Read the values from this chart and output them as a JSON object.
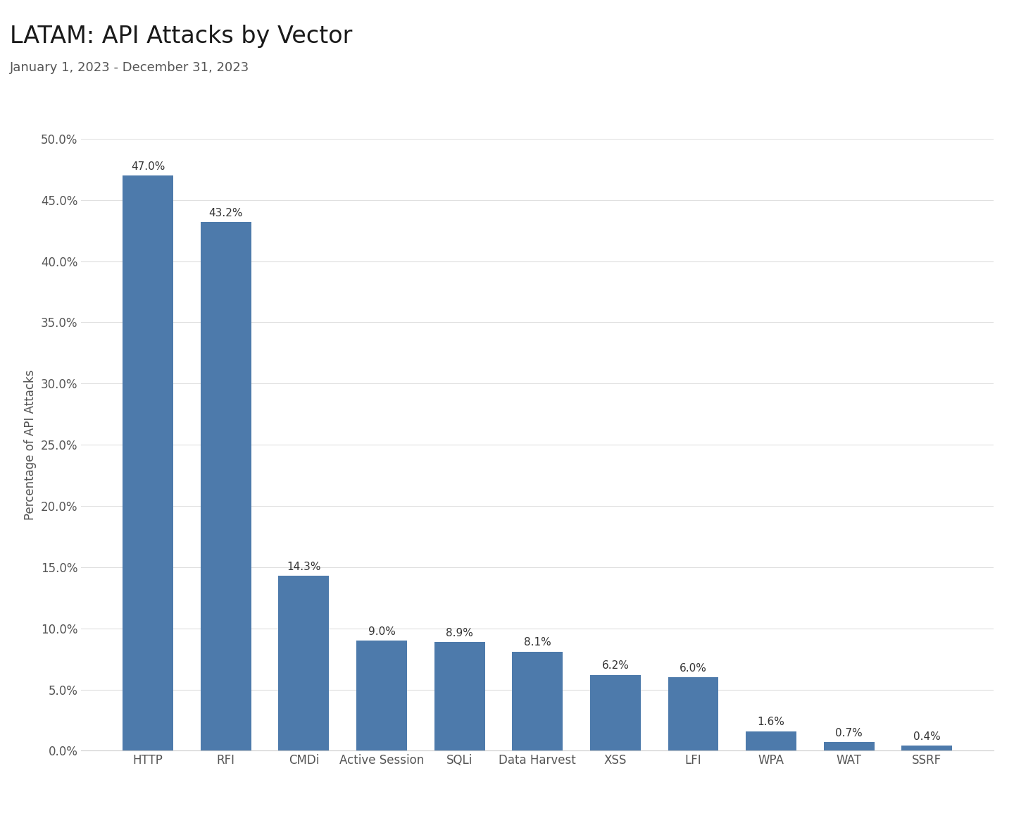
{
  "title": "LATAM: API Attacks by Vector",
  "subtitle": "January 1, 2023 - December 31, 2023",
  "categories": [
    "HTTP",
    "RFI",
    "CMDi",
    "Active Session",
    "SQLi",
    "Data Harvest",
    "XSS",
    "LFI",
    "WPA",
    "WAT",
    "SSRF"
  ],
  "values": [
    47.0,
    43.2,
    14.3,
    9.0,
    8.9,
    8.1,
    6.2,
    6.0,
    1.6,
    0.7,
    0.4
  ],
  "bar_color": "#4d7aab",
  "ylabel": "Percentage of API Attacks",
  "ylim": [
    0,
    50
  ],
  "yticks": [
    0,
    5,
    10,
    15,
    20,
    25,
    30,
    35,
    40,
    45,
    50
  ],
  "title_fontsize": 24,
  "subtitle_fontsize": 13,
  "label_fontsize": 12,
  "tick_fontsize": 12,
  "value_fontsize": 11,
  "background_color": "#ffffff",
  "grid_color": "#e0e0e0"
}
